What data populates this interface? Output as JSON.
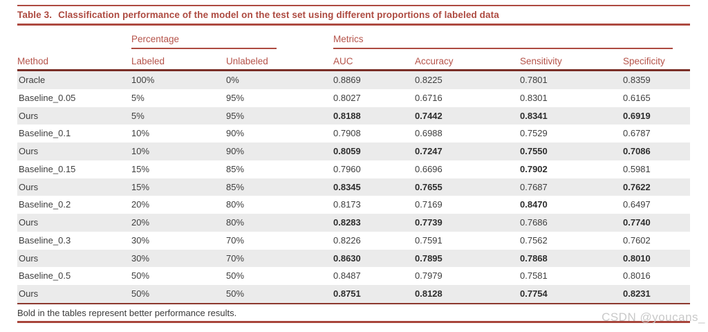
{
  "title": {
    "label": "Table 3.",
    "text": "Classification performance of the model on the test set using different proportions of labeled data"
  },
  "table": {
    "group_headers": {
      "percentage": "Percentage",
      "metrics": "Metrics"
    },
    "columns": [
      "Method",
      "Labeled",
      "Unlabeled",
      "AUC",
      "Accuracy",
      "Sensitivity",
      "Specificity"
    ],
    "rows": [
      {
        "cells": [
          "Oracle",
          "100%",
          "0%",
          "0.8869",
          "0.8225",
          "0.7801",
          "0.8359"
        ],
        "bold": []
      },
      {
        "cells": [
          "Baseline_0.05",
          "5%",
          "95%",
          "0.8027",
          "0.6716",
          "0.8301",
          "0.6165"
        ],
        "bold": []
      },
      {
        "cells": [
          "Ours",
          "5%",
          "95%",
          "0.8188",
          "0.7442",
          "0.8341",
          "0.6919"
        ],
        "bold": [
          3,
          4,
          5,
          6
        ]
      },
      {
        "cells": [
          "Baseline_0.1",
          "10%",
          "90%",
          "0.7908",
          "0.6988",
          "0.7529",
          "0.6787"
        ],
        "bold": []
      },
      {
        "cells": [
          "Ours",
          "10%",
          "90%",
          "0.8059",
          "0.7247",
          "0.7550",
          "0.7086"
        ],
        "bold": [
          3,
          4,
          5,
          6
        ]
      },
      {
        "cells": [
          "Baseline_0.15",
          "15%",
          "85%",
          "0.7960",
          "0.6696",
          "0.7902",
          "0.5981"
        ],
        "bold": [
          5
        ]
      },
      {
        "cells": [
          "Ours",
          "15%",
          "85%",
          "0.8345",
          "0.7655",
          "0.7687",
          "0.7622"
        ],
        "bold": [
          3,
          4,
          6
        ]
      },
      {
        "cells": [
          "Baseline_0.2",
          "20%",
          "80%",
          "0.8173",
          "0.7169",
          "0.8470",
          "0.6497"
        ],
        "bold": [
          5
        ]
      },
      {
        "cells": [
          "Ours",
          "20%",
          "80%",
          "0.8283",
          "0.7739",
          "0.7686",
          "0.7740"
        ],
        "bold": [
          3,
          4,
          6
        ]
      },
      {
        "cells": [
          "Baseline_0.3",
          "30%",
          "70%",
          "0.8226",
          "0.7591",
          "0.7562",
          "0.7602"
        ],
        "bold": []
      },
      {
        "cells": [
          "Ours",
          "30%",
          "70%",
          "0.8630",
          "0.7895",
          "0.7868",
          "0.8010"
        ],
        "bold": [
          3,
          4,
          5,
          6
        ]
      },
      {
        "cells": [
          "Baseline_0.5",
          "50%",
          "50%",
          "0.8487",
          "0.7979",
          "0.7581",
          "0.8016"
        ],
        "bold": []
      },
      {
        "cells": [
          "Ours",
          "50%",
          "50%",
          "0.8751",
          "0.8128",
          "0.7754",
          "0.8231"
        ],
        "bold": [
          3,
          4,
          5,
          6
        ]
      }
    ]
  },
  "footnote": "Bold in the tables represent better performance results.",
  "watermark": "CSDN @youcans_",
  "colors": {
    "accent_red": "#ad4a40",
    "header_text_red": "#b5534a",
    "dark_rule": "#7a2e27",
    "row_alt_bg": "#ebebeb",
    "body_text": "#3e3e3e",
    "watermark_gray": "#c9c9c9"
  }
}
